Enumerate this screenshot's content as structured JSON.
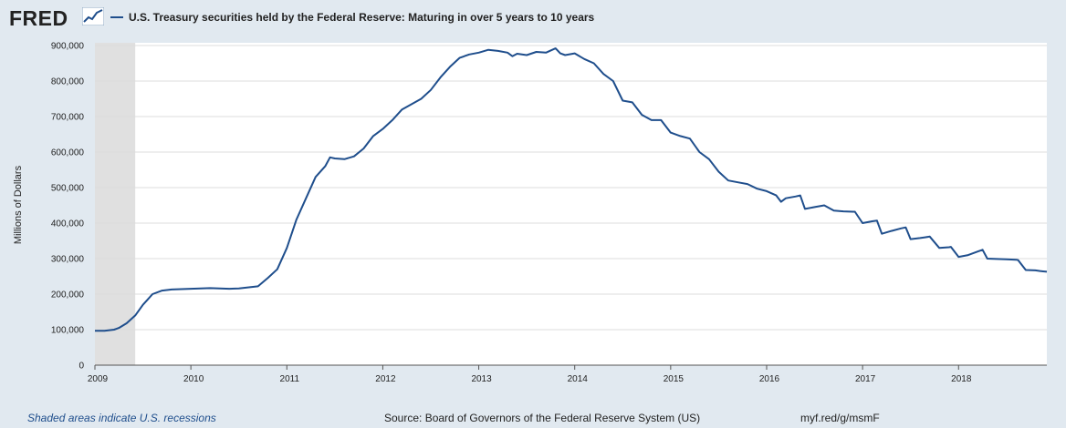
{
  "logo": {
    "text": "FRED",
    "icon": "fred-chart-icon"
  },
  "colors": {
    "series": "#1f4e8c",
    "recession": "#e0e0e0",
    "background": "#e1e9f0",
    "plot": "#ffffff"
  },
  "footer": {
    "recession_note": "Shaded areas indicate U.S. recessions",
    "source": "Source: Board of Governors of the Federal Reserve System (US)",
    "url": "myf.red/g/msmF"
  },
  "chart_data": {
    "type": "line",
    "ylabel": "Millions of Dollars",
    "ylim": [
      0,
      900000
    ],
    "xlim": [
      2009.0,
      2018.92
    ],
    "y_ticks": [
      {
        "value": 0,
        "label": "0"
      },
      {
        "value": 100000,
        "label": "100,000"
      },
      {
        "value": 200000,
        "label": "200,000"
      },
      {
        "value": 300000,
        "label": "300,000"
      },
      {
        "value": 400000,
        "label": "400,000"
      },
      {
        "value": 500000,
        "label": "500,000"
      },
      {
        "value": 600000,
        "label": "600,000"
      },
      {
        "value": 700000,
        "label": "700,000"
      },
      {
        "value": 800000,
        "label": "800,000"
      },
      {
        "value": 900000,
        "label": "900,000"
      }
    ],
    "x_ticks": [
      {
        "value": 2009,
        "label": "2009"
      },
      {
        "value": 2010,
        "label": "2010"
      },
      {
        "value": 2011,
        "label": "2011"
      },
      {
        "value": 2012,
        "label": "2012"
      },
      {
        "value": 2013,
        "label": "2013"
      },
      {
        "value": 2014,
        "label": "2014"
      },
      {
        "value": 2015,
        "label": "2015"
      },
      {
        "value": 2016,
        "label": "2016"
      },
      {
        "value": 2017,
        "label": "2017"
      },
      {
        "value": 2018,
        "label": "2018"
      }
    ],
    "grid": true,
    "recessions": [
      [
        2009.0,
        2009.42
      ]
    ],
    "series": [
      {
        "name": "U.S. Treasury securities held by the Federal Reserve: Maturing in over 5 years to 10 years",
        "x": [
          2009.0,
          2009.1,
          2009.2,
          2009.25,
          2009.33,
          2009.42,
          2009.5,
          2009.55,
          2009.6,
          2009.7,
          2009.8,
          2010.0,
          2010.2,
          2010.4,
          2010.5,
          2010.7,
          2010.8,
          2010.9,
          2011.0,
          2011.1,
          2011.2,
          2011.3,
          2011.4,
          2011.45,
          2011.5,
          2011.6,
          2011.7,
          2011.8,
          2011.9,
          2012.0,
          2012.1,
          2012.2,
          2012.3,
          2012.4,
          2012.5,
          2012.6,
          2012.7,
          2012.8,
          2012.9,
          2013.0,
          2013.1,
          2013.2,
          2013.3,
          2013.35,
          2013.4,
          2013.5,
          2013.6,
          2013.7,
          2013.8,
          2013.85,
          2013.9,
          2014.0,
          2014.1,
          2014.2,
          2014.3,
          2014.4,
          2014.5,
          2014.6,
          2014.7,
          2014.8,
          2014.9,
          2015.0,
          2015.1,
          2015.2,
          2015.3,
          2015.4,
          2015.5,
          2015.6,
          2015.7,
          2015.8,
          2015.9,
          2016.0,
          2016.1,
          2016.15,
          2016.2,
          2016.3,
          2016.35,
          2016.4,
          2016.5,
          2016.6,
          2016.7,
          2016.8,
          2016.9,
          2016.92,
          2017.0,
          2017.1,
          2017.15,
          2017.2,
          2017.3,
          2017.4,
          2017.45,
          2017.5,
          2017.6,
          2017.65,
          2017.7,
          2017.8,
          2017.9,
          2017.92,
          2018.0,
          2018.1,
          2018.2,
          2018.25,
          2018.3,
          2018.4,
          2018.5,
          2018.6,
          2018.62,
          2018.7,
          2018.8,
          2018.85,
          2018.92
        ],
        "values": [
          97000,
          97000,
          100000,
          105000,
          118000,
          140000,
          170000,
          185000,
          200000,
          210000,
          213000,
          215000,
          217000,
          215000,
          216000,
          222000,
          245000,
          270000,
          330000,
          410000,
          470000,
          530000,
          560000,
          585000,
          582000,
          580000,
          588000,
          610000,
          645000,
          665000,
          690000,
          720000,
          735000,
          750000,
          775000,
          810000,
          840000,
          865000,
          875000,
          880000,
          888000,
          885000,
          880000,
          870000,
          877000,
          873000,
          882000,
          880000,
          892000,
          878000,
          873000,
          878000,
          862000,
          850000,
          820000,
          800000,
          745000,
          740000,
          705000,
          690000,
          690000,
          655000,
          645000,
          638000,
          600000,
          580000,
          545000,
          520000,
          515000,
          510000,
          497000,
          490000,
          478000,
          460000,
          470000,
          475000,
          478000,
          440000,
          445000,
          450000,
          435000,
          433000,
          432000,
          432000,
          400000,
          405000,
          407000,
          370000,
          378000,
          385000,
          388000,
          355000,
          358000,
          360000,
          362000,
          330000,
          332000,
          333000,
          305000,
          310000,
          320000,
          325000,
          300000,
          299000,
          298000,
          297000,
          296000,
          268000,
          267000,
          265000,
          263000
        ]
      }
    ]
  }
}
